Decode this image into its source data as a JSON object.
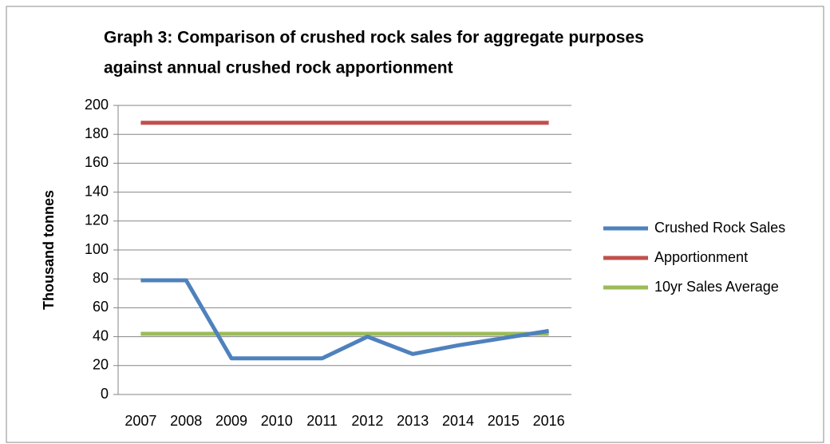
{
  "chart_data": {
    "type": "line",
    "title": [
      "Graph 3: Comparison of crushed rock sales for aggregate purposes",
      "against annual crushed rock apportionment"
    ],
    "y_label": "Thousand  tonnes",
    "categories": [
      "2007",
      "2008",
      "2009",
      "2010",
      "2011",
      "2012",
      "2013",
      "2014",
      "2015",
      "2016"
    ],
    "series": [
      {
        "name": "Crushed Rock Sales",
        "color": "#4f81bd",
        "values": [
          79,
          79,
          25,
          25,
          25,
          40,
          28,
          34,
          39,
          44
        ]
      },
      {
        "name": "Apportionment",
        "color": "#c0504d",
        "values": [
          188,
          188,
          188,
          188,
          188,
          188,
          188,
          188,
          188,
          188
        ]
      },
      {
        "name": "10yr Sales Average",
        "color": "#9bbb59",
        "values": [
          42,
          42,
          42,
          42,
          42,
          42,
          42,
          42,
          42,
          42
        ]
      }
    ],
    "ylim": [
      0,
      200
    ],
    "yticks": [
      0,
      20,
      40,
      60,
      80,
      100,
      120,
      140,
      160,
      180,
      200
    ],
    "grid": true,
    "legend": "right"
  }
}
